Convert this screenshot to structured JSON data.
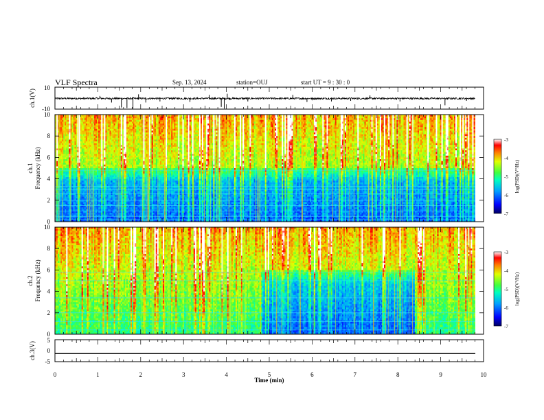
{
  "header": {
    "title": "VLF Spectra",
    "date": "Sep. 13, 2024",
    "station": "station=OUJ",
    "start": "start  UT =   9 : 30 : 0"
  },
  "chart_data": [
    {
      "type": "line",
      "panel": "ch1-waveform",
      "ylabel": "ch.1(V)",
      "ylim": [
        -10,
        10
      ],
      "yticks": [
        "10",
        "-10"
      ],
      "baseline": -0.3,
      "amplitude": 0.8,
      "spikes": [
        {
          "x": 1.05,
          "y": 2.0
        },
        {
          "x": 1.32,
          "y": -4.0
        },
        {
          "x": 1.55,
          "y": -8.5
        },
        {
          "x": 1.68,
          "y": -9.0
        },
        {
          "x": 1.82,
          "y": -9.5
        },
        {
          "x": 1.95,
          "y": 3.5
        },
        {
          "x": 2.12,
          "y": -4.0
        },
        {
          "x": 2.45,
          "y": -3.0
        },
        {
          "x": 3.15,
          "y": -3.5
        },
        {
          "x": 3.6,
          "y": 3.0
        },
        {
          "x": 3.88,
          "y": -8.0
        },
        {
          "x": 3.95,
          "y": -9.5
        },
        {
          "x": 4.02,
          "y": 4.0
        },
        {
          "x": 4.5,
          "y": -3.0
        },
        {
          "x": 5.55,
          "y": 3.0
        },
        {
          "x": 5.88,
          "y": -3.5
        },
        {
          "x": 6.0,
          "y": -2.0
        },
        {
          "x": 6.45,
          "y": -3.0
        },
        {
          "x": 6.9,
          "y": -2.5
        },
        {
          "x": 7.35,
          "y": 2.5
        },
        {
          "x": 8.05,
          "y": -3.0
        },
        {
          "x": 9.1,
          "y": -6.5
        },
        {
          "x": 9.6,
          "y": -2.5
        }
      ]
    },
    {
      "type": "heatmap",
      "panel": "ch1-spectrogram",
      "ylabel": "ch.1\nFrequency (kHz)",
      "xlim": [
        0,
        10
      ],
      "ylim": [
        0,
        10
      ],
      "yticks": [
        "0",
        "2",
        "4",
        "6",
        "8",
        "10"
      ],
      "x_end": 9.8,
      "colorbar": {
        "label": "log(PSD)(V²/Hz)",
        "range": [
          -7,
          -3
        ],
        "ticks": [
          "-3",
          "-4",
          "-5",
          "-6",
          "-7"
        ]
      },
      "quiet_region": {
        "x0": 0,
        "x1": 9.8,
        "f0": 0,
        "f1": 5
      },
      "noise_lines_khz": [
        0.2,
        0.5,
        1.0,
        1.5,
        2.0,
        2.6,
        3.0,
        3.3,
        4.8
      ]
    },
    {
      "type": "heatmap",
      "panel": "ch2-spectrogram",
      "ylabel": "ch.2\nFrequency (kHz)",
      "xlim": [
        0,
        10
      ],
      "ylim": [
        0,
        10
      ],
      "yticks": [
        "0",
        "2",
        "4",
        "6",
        "8",
        "10"
      ],
      "x_end": 9.8,
      "colorbar": {
        "label": "log(PSD)(V²/Hz)",
        "range": [
          -7,
          -3
        ],
        "ticks": [
          "-3",
          "-4",
          "-5",
          "-6",
          "-7"
        ]
      },
      "quiet_region": {
        "x0": 4.85,
        "x1": 8.4,
        "f0": 0,
        "f1": 6
      },
      "noise_lines_khz": [
        0.4,
        1.2,
        2.0,
        3.4,
        5.0,
        5.8
      ]
    },
    {
      "type": "line",
      "panel": "ch3-waveform",
      "ylabel": "ch.3(V)",
      "ylim": [
        -5,
        5
      ],
      "yticks": [
        "5",
        "0",
        "-5"
      ],
      "constant": -1.3,
      "xlabel": "Time  (min)",
      "xticks": [
        "0",
        "1",
        "2",
        "3",
        "4",
        "5",
        "6",
        "7",
        "8",
        "9",
        "10"
      ]
    }
  ]
}
